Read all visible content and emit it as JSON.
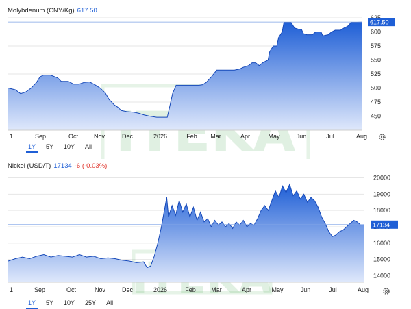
{
  "watermark": "ITEKA",
  "colors": {
    "accent": "#1f5fd6",
    "negative": "#e0342b",
    "fill_top": "#1f5fd6",
    "fill_bottom": "#dfe8fb",
    "grid": "#e6e6e6",
    "watermark": "#2f9a3a"
  },
  "chart_data": [
    {
      "type": "area",
      "title": "Molybdenum (CNY/Kg)",
      "last_value": "617.50",
      "ylim": [
        425,
        625
      ],
      "yticks": [
        450,
        475,
        500,
        525,
        550,
        575,
        600,
        625
      ],
      "x_ticks": [
        "1",
        "Sep",
        "Oct",
        "Nov",
        "Dec",
        "2026",
        "Feb",
        "Mar",
        "Apr",
        "May",
        "Jun",
        "Jul",
        "Aug"
      ],
      "range_buttons": [
        "1Y",
        "5Y",
        "10Y",
        "All"
      ],
      "active_range": "1Y",
      "series": [
        {
          "points": [
            [
              0.0,
              500
            ],
            [
              0.02,
              497
            ],
            [
              0.035,
              490
            ],
            [
              0.05,
              493
            ],
            [
              0.065,
              500
            ],
            [
              0.08,
              510
            ],
            [
              0.09,
              520
            ],
            [
              0.1,
              523
            ],
            [
              0.12,
              523
            ],
            [
              0.14,
              518
            ],
            [
              0.15,
              512
            ],
            [
              0.17,
              512
            ],
            [
              0.185,
              507
            ],
            [
              0.2,
              507
            ],
            [
              0.215,
              510
            ],
            [
              0.23,
              511
            ],
            [
              0.245,
              506
            ],
            [
              0.26,
              500
            ],
            [
              0.275,
              491
            ],
            [
              0.285,
              480
            ],
            [
              0.3,
              470
            ],
            [
              0.31,
              466
            ],
            [
              0.32,
              460
            ],
            [
              0.335,
              458
            ],
            [
              0.355,
              457
            ],
            [
              0.37,
              455
            ],
            [
              0.385,
              452
            ],
            [
              0.4,
              450
            ],
            [
              0.42,
              448
            ],
            [
              0.44,
              448
            ],
            [
              0.45,
              448
            ],
            [
              0.458,
              470
            ],
            [
              0.465,
              490
            ],
            [
              0.475,
              505
            ],
            [
              0.49,
              505
            ],
            [
              0.52,
              505
            ],
            [
              0.54,
              505
            ],
            [
              0.55,
              506
            ],
            [
              0.56,
              510
            ],
            [
              0.575,
              520
            ],
            [
              0.59,
              532
            ],
            [
              0.6,
              532
            ],
            [
              0.62,
              532
            ],
            [
              0.64,
              532
            ],
            [
              0.655,
              534
            ],
            [
              0.665,
              537
            ],
            [
              0.68,
              540
            ],
            [
              0.69,
              545
            ],
            [
              0.7,
              545
            ],
            [
              0.71,
              540
            ],
            [
              0.72,
              545
            ],
            [
              0.735,
              550
            ],
            [
              0.74,
              565
            ],
            [
              0.75,
              575
            ],
            [
              0.76,
              575
            ],
            [
              0.765,
              590
            ],
            [
              0.775,
              600
            ],
            [
              0.78,
              617
            ],
            [
              0.8,
              617
            ],
            [
              0.81,
              607
            ],
            [
              0.82,
              605
            ],
            [
              0.83,
              604
            ],
            [
              0.835,
              597
            ],
            [
              0.845,
              595
            ],
            [
              0.86,
              595
            ],
            [
              0.87,
              600
            ],
            [
              0.885,
              600
            ],
            [
              0.89,
              593
            ],
            [
              0.905,
              595
            ],
            [
              0.915,
              600
            ],
            [
              0.925,
              603
            ],
            [
              0.94,
              603
            ],
            [
              0.95,
              607
            ],
            [
              0.96,
              610
            ],
            [
              0.965,
              613
            ],
            [
              0.97,
              617
            ],
            [
              0.98,
              617
            ],
            [
              1.0,
              617.5
            ]
          ]
        }
      ]
    },
    {
      "type": "area",
      "title": "Nickel (USD/T)",
      "last_value": "17134",
      "change": "-6 (-0.03%)",
      "ylim": [
        13600,
        20400
      ],
      "yticks": [
        14000,
        15000,
        16000,
        17000,
        18000,
        19000,
        20000
      ],
      "x_ticks": [
        "1",
        "Sep",
        "Oct",
        "Nov",
        "Dec",
        "2026",
        "Feb",
        "Mar",
        "Apr",
        "May",
        "Jun",
        "Jul",
        "Aug"
      ],
      "range_buttons": [
        "1Y",
        "5Y",
        "10Y",
        "25Y",
        "All"
      ],
      "active_range": "1Y",
      "series": [
        {
          "points": [
            [
              0.0,
              14900
            ],
            [
              0.02,
              15050
            ],
            [
              0.04,
              15150
            ],
            [
              0.06,
              15050
            ],
            [
              0.08,
              15200
            ],
            [
              0.1,
              15300
            ],
            [
              0.12,
              15150
            ],
            [
              0.14,
              15250
            ],
            [
              0.16,
              15200
            ],
            [
              0.18,
              15150
            ],
            [
              0.2,
              15300
            ],
            [
              0.22,
              15150
            ],
            [
              0.24,
              15200
            ],
            [
              0.26,
              15050
            ],
            [
              0.28,
              15100
            ],
            [
              0.3,
              15050
            ],
            [
              0.32,
              14950
            ],
            [
              0.34,
              14900
            ],
            [
              0.36,
              14800
            ],
            [
              0.38,
              14850
            ],
            [
              0.39,
              14500
            ],
            [
              0.4,
              14600
            ],
            [
              0.41,
              15200
            ],
            [
              0.42,
              16000
            ],
            [
              0.43,
              17000
            ],
            [
              0.44,
              18200
            ],
            [
              0.445,
              18800
            ],
            [
              0.45,
              17600
            ],
            [
              0.46,
              18300
            ],
            [
              0.47,
              17700
            ],
            [
              0.48,
              18600
            ],
            [
              0.49,
              17900
            ],
            [
              0.5,
              18400
            ],
            [
              0.51,
              17600
            ],
            [
              0.52,
              18200
            ],
            [
              0.53,
              17400
            ],
            [
              0.54,
              17900
            ],
            [
              0.55,
              17300
            ],
            [
              0.56,
              17500
            ],
            [
              0.57,
              17000
            ],
            [
              0.58,
              17400
            ],
            [
              0.59,
              17100
            ],
            [
              0.6,
              17300
            ],
            [
              0.61,
              17000
            ],
            [
              0.62,
              17200
            ],
            [
              0.63,
              16900
            ],
            [
              0.64,
              17300
            ],
            [
              0.65,
              17100
            ],
            [
              0.66,
              17400
            ],
            [
              0.67,
              17000
            ],
            [
              0.68,
              17200
            ],
            [
              0.69,
              17100
            ],
            [
              0.7,
              17500
            ],
            [
              0.71,
              18000
            ],
            [
              0.72,
              18300
            ],
            [
              0.73,
              18000
            ],
            [
              0.74,
              18600
            ],
            [
              0.75,
              19200
            ],
            [
              0.76,
              18800
            ],
            [
              0.77,
              19500
            ],
            [
              0.78,
              19100
            ],
            [
              0.79,
              19600
            ],
            [
              0.8,
              18900
            ],
            [
              0.81,
              19200
            ],
            [
              0.82,
              18700
            ],
            [
              0.83,
              19000
            ],
            [
              0.84,
              18500
            ],
            [
              0.85,
              18800
            ],
            [
              0.86,
              18600
            ],
            [
              0.87,
              18200
            ],
            [
              0.88,
              17600
            ],
            [
              0.89,
              17200
            ],
            [
              0.9,
              16700
            ],
            [
              0.91,
              16400
            ],
            [
              0.92,
              16500
            ],
            [
              0.93,
              16700
            ],
            [
              0.94,
              16800
            ],
            [
              0.95,
              17000
            ],
            [
              0.96,
              17200
            ],
            [
              0.97,
              17400
            ],
            [
              0.98,
              17300
            ],
            [
              0.99,
              17100
            ],
            [
              1.0,
              17134
            ]
          ]
        }
      ]
    }
  ]
}
